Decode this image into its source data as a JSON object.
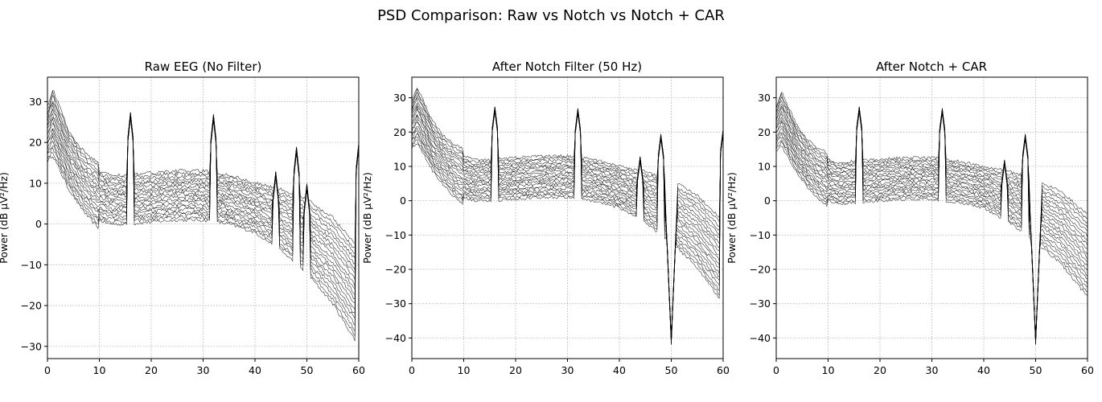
{
  "figure_title": "PSD Comparison: Raw vs Notch vs Notch + CAR",
  "colors": {
    "line": "#000000",
    "grid": "#b0b0b0",
    "background": "#ffffff"
  },
  "chart_data": [
    {
      "type": "line",
      "title": "Raw EEG (No Filter)",
      "xlabel": "",
      "ylabel": "Power (dB µV²/Hz)",
      "xlim": [
        0,
        60
      ],
      "ylim": [
        -33,
        36
      ],
      "xticks": [
        "0",
        "10",
        "20",
        "30",
        "40",
        "50",
        "60"
      ],
      "yticks": [
        "-30",
        "-20",
        "-10",
        "0",
        "10",
        "20",
        "30"
      ],
      "grid": true,
      "line_count": 20,
      "reference_curve": {
        "x": [
          0,
          1,
          2,
          4,
          6,
          8,
          10,
          12,
          15,
          20,
          25,
          30,
          35,
          40,
          45,
          50,
          55,
          60
        ],
        "y": [
          22,
          25,
          22,
          16,
          12,
          9,
          7,
          6,
          6,
          6.5,
          7,
          7,
          6,
          4,
          1,
          -3,
          -9,
          -18
        ]
      },
      "peaks": [
        {
          "x": 16,
          "y": 27.5
        },
        {
          "x": 32,
          "y": 27
        },
        {
          "x": 44,
          "y": 13
        },
        {
          "x": 48,
          "y": 19
        },
        {
          "x": 50,
          "y": 10
        },
        {
          "x": 60,
          "y": 20
        }
      ],
      "notch_dip": null
    },
    {
      "type": "line",
      "title": "After Notch Filter (50 Hz)",
      "xlabel": "",
      "ylabel": "Power (dB µV²/Hz)",
      "xlim": [
        0,
        60
      ],
      "ylim": [
        -46,
        36
      ],
      "xticks": [
        "0",
        "10",
        "20",
        "30",
        "40",
        "50",
        "60"
      ],
      "yticks": [
        "-40",
        "-30",
        "-20",
        "-10",
        "0",
        "10",
        "20",
        "30"
      ],
      "grid": true,
      "line_count": 20,
      "reference_curve": {
        "x": [
          0,
          1,
          2,
          4,
          6,
          8,
          10,
          12,
          15,
          20,
          25,
          30,
          35,
          40,
          45,
          50,
          55,
          60
        ],
        "y": [
          22,
          25,
          22,
          16,
          12,
          9,
          7,
          6,
          6,
          6.5,
          7,
          7,
          6,
          4,
          1,
          -3,
          -9,
          -18
        ]
      },
      "peaks": [
        {
          "x": 16,
          "y": 27.5
        },
        {
          "x": 32,
          "y": 27
        },
        {
          "x": 44,
          "y": 13
        },
        {
          "x": 48,
          "y": 19.5
        },
        {
          "x": 60,
          "y": 21
        }
      ],
      "notch_dip": {
        "x": 50,
        "y": -42
      }
    },
    {
      "type": "line",
      "title": "After Notch + CAR",
      "xlabel": "",
      "ylabel": "Power (dB µV²/Hz)",
      "xlim": [
        0,
        60
      ],
      "ylim": [
        -46,
        36
      ],
      "xticks": [
        "0",
        "10",
        "20",
        "30",
        "40",
        "50",
        "60"
      ],
      "yticks": [
        "-40",
        "-30",
        "-20",
        "-10",
        "0",
        "10",
        "20",
        "30"
      ],
      "grid": true,
      "line_count": 20,
      "reference_curve": {
        "x": [
          0,
          1,
          2,
          4,
          6,
          8,
          10,
          12,
          15,
          20,
          25,
          30,
          35,
          40,
          45,
          50,
          55,
          60
        ],
        "y": [
          21,
          24,
          21,
          15,
          11,
          8,
          6,
          5,
          5.5,
          6,
          6.5,
          6.5,
          5.5,
          4,
          1,
          -3,
          -8,
          -16
        ]
      },
      "peaks": [
        {
          "x": 16,
          "y": 27.5
        },
        {
          "x": 32,
          "y": 27
        },
        {
          "x": 44,
          "y": 12
        },
        {
          "x": 48,
          "y": 19.5
        }
      ],
      "notch_dip": {
        "x": 50,
        "y": -42
      }
    }
  ]
}
